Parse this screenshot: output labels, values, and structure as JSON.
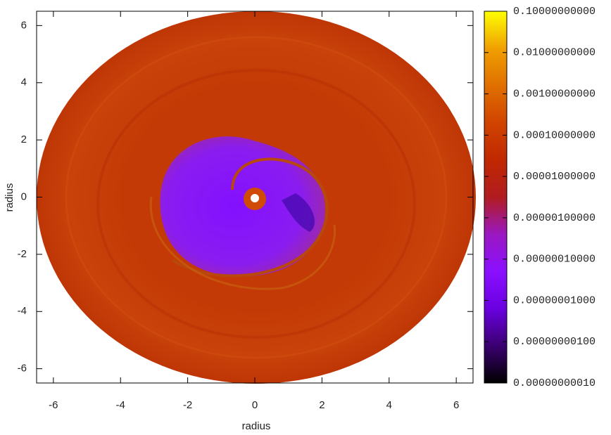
{
  "chart_data": {
    "type": "heatmap",
    "xlabel": "radius",
    "ylabel": "radius",
    "xlim": [
      -6.5,
      6.5
    ],
    "ylim": [
      -6.5,
      6.5
    ],
    "xticks": [
      -6,
      -4,
      -2,
      0,
      2,
      4,
      6
    ],
    "yticks": [
      -6,
      -4,
      -2,
      0,
      2,
      4,
      6
    ],
    "colorbar": {
      "scale": "log",
      "lim": [
        1e-10,
        0.1
      ],
      "colors": [
        "#000000",
        "#3a0070",
        "#6a00e0",
        "#8a10ff",
        "#9a18c0",
        "#b01c20",
        "#c02800",
        "#d04400",
        "#e07000",
        "#f0a000",
        "#ffff00"
      ],
      "ticks": [
        {
          "value": 1e-10,
          "label": "0.00000000010"
        },
        {
          "value": 1e-09,
          "label": "0.00000000100"
        },
        {
          "value": 1e-08,
          "label": "0.00000001000"
        },
        {
          "value": 1e-07,
          "label": "0.00000010000"
        },
        {
          "value": 1e-06,
          "label": "0.00000100000"
        },
        {
          "value": 1e-05,
          "label": "0.00001000000"
        },
        {
          "value": 0.0001,
          "label": "0.00010000000"
        },
        {
          "value": 0.001,
          "label": "0.00100000000"
        },
        {
          "value": 0.01,
          "label": "0.01000000000"
        },
        {
          "value": 0.1,
          "label": "0.10000000000"
        }
      ]
    }
  }
}
